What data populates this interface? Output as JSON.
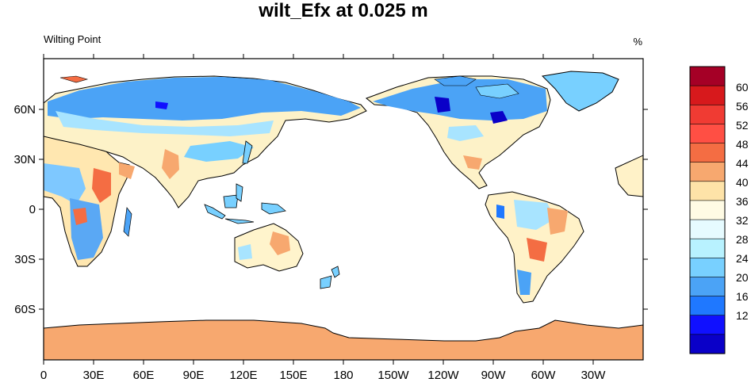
{
  "title": "wilt_Efx at 0.025 m",
  "left_label": "Wilting Point",
  "right_label": "%",
  "map": {
    "projection": "cylindrical-equidistant",
    "center_longitude": 180,
    "lon_ticks": [
      "0",
      "30E",
      "60E",
      "90E",
      "120E",
      "150E",
      "180",
      "150W",
      "120W",
      "90W",
      "60W",
      "30W"
    ],
    "lat_ticks": [
      "60N",
      "30N",
      "0",
      "30S",
      "60S"
    ],
    "ocean_color": "#ffffff",
    "antarctica_color": "#f7a86f"
  },
  "colorbar": {
    "labels": [
      "60",
      "56",
      "52",
      "48",
      "44",
      "40",
      "36",
      "32",
      "28",
      "24",
      "20",
      "16",
      "12"
    ],
    "colors": [
      "#a50026",
      "#d7191c",
      "#f03b33",
      "#ff4f44",
      "#f46d43",
      "#f7a86f",
      "#fee3a8",
      "#fffbe4",
      "#e6fbff",
      "#b8f2ff",
      "#78d0ff",
      "#4ba3f6",
      "#1f78ff",
      "#1010ff",
      "#0a00c8"
    ]
  }
}
